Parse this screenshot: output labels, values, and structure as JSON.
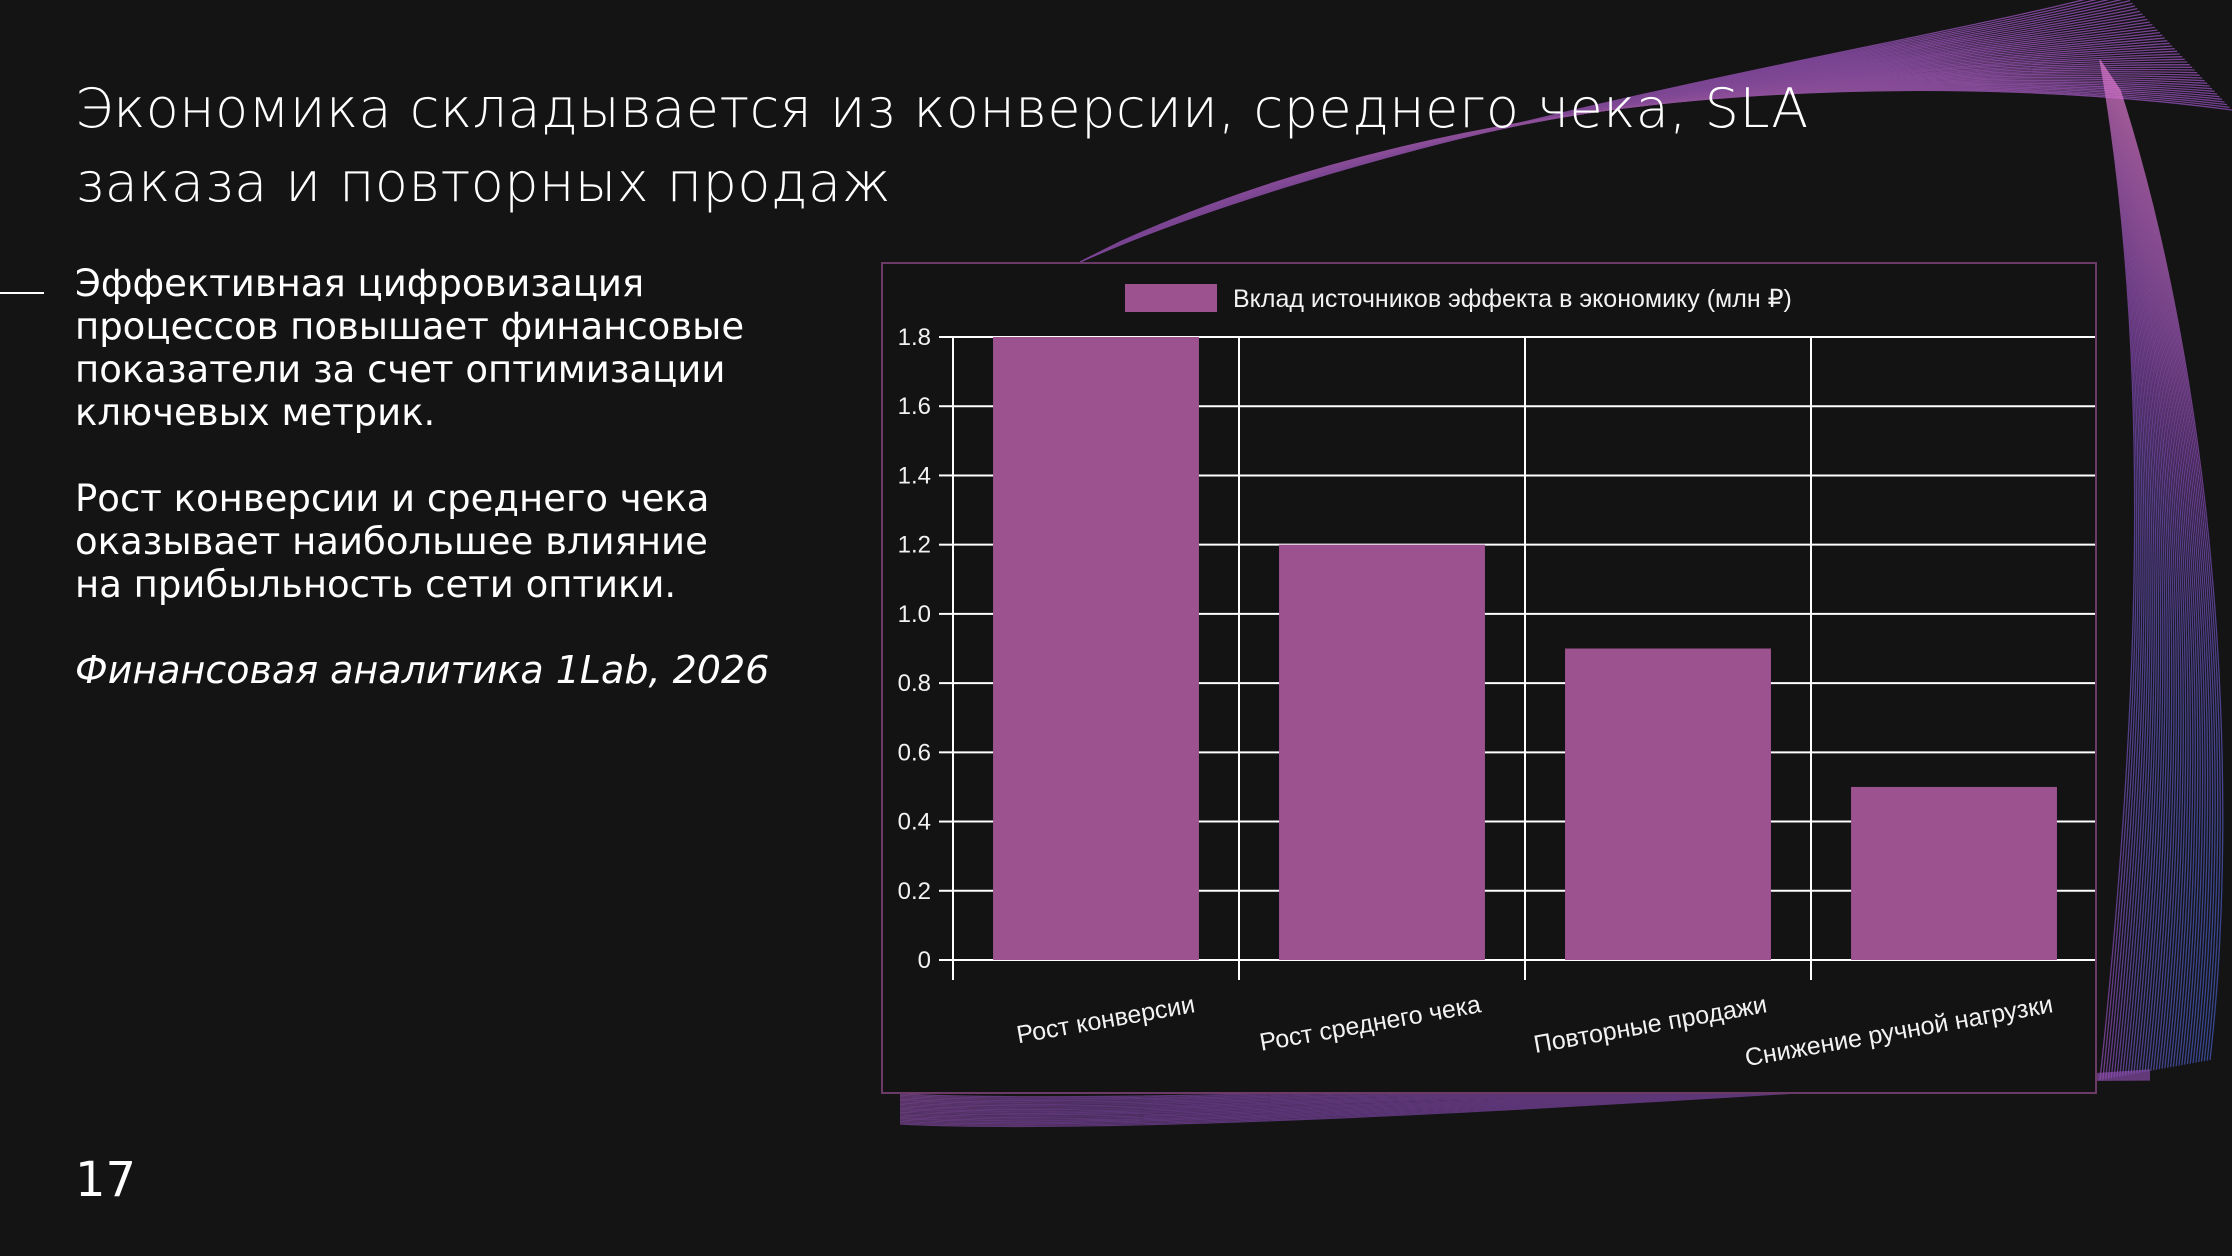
{
  "slide": {
    "title_lines": [
      "Экономика складывается из конверсии, среднего чека, SLA",
      "заказа и повторных продаж"
    ],
    "paragraphs": [
      [
        "Эффективная цифровизация",
        "процессов повышает финансовые",
        "показатели за счет оптимизации",
        "ключевых метрик."
      ],
      [
        "Рост конверсии и среднего чека",
        "оказывает наибольшее влияние",
        "на прибыльность сети оптики."
      ]
    ],
    "source_note": "Финансовая аналитика 1Lab, 2026",
    "page_number": "17"
  },
  "colors": {
    "background": "#141414",
    "bar": "#9b528f",
    "grid": "#ffffff",
    "accent_pink": "#e07ad0",
    "accent_blue": "#3a5fc8"
  },
  "chart_data": {
    "type": "bar",
    "categories": [
      "Рост конверсии",
      "Рост среднего чека",
      "Повторные продажи",
      "Снижение ручной нагрузки"
    ],
    "series": [
      {
        "name": "Вклад источников эффекта в экономику (млн ₽)",
        "values": [
          1.8,
          1.2,
          0.9,
          0.5
        ]
      }
    ],
    "title": "",
    "xlabel": "",
    "ylabel": "",
    "ylim": [
      0,
      1.8
    ],
    "yticks": [
      0,
      0.2,
      0.4,
      0.6,
      0.8,
      1.0,
      1.2,
      1.4,
      1.6,
      1.8
    ],
    "ytick_labels": [
      "0",
      "0.2",
      "0.4",
      "0.6",
      "0.8",
      "1.0",
      "1.2",
      "1.4",
      "1.6",
      "1.8"
    ],
    "grid": true,
    "legend_position": "top-center"
  }
}
